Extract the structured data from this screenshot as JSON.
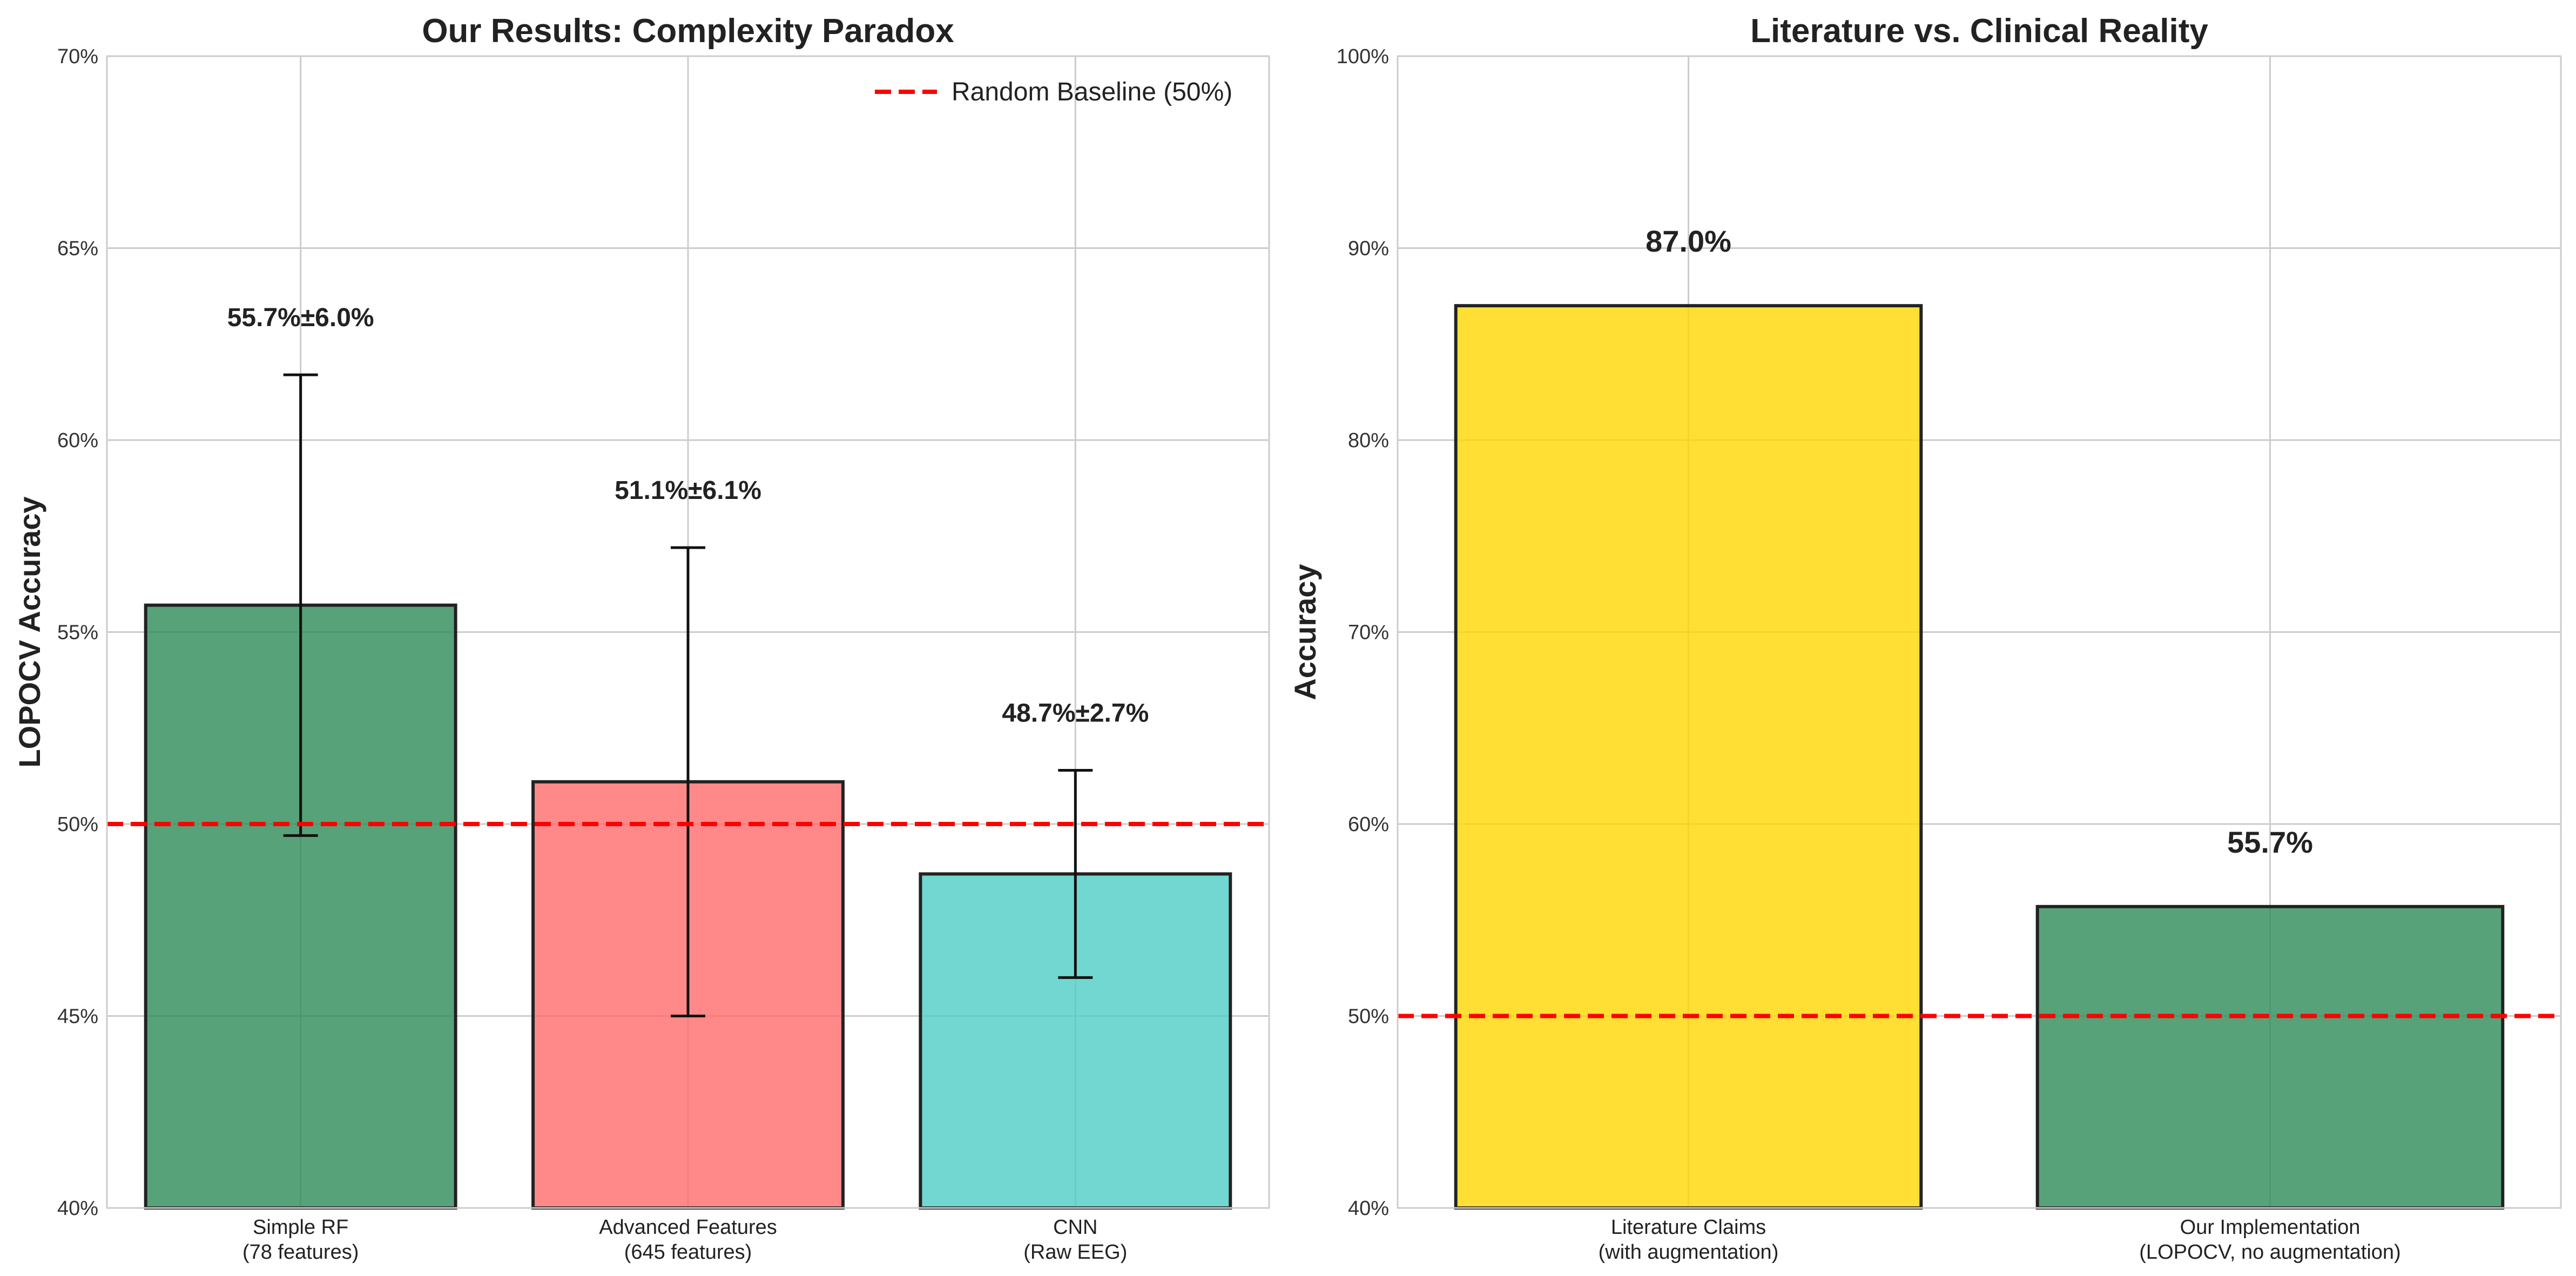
{
  "chart_data": [
    {
      "type": "bar",
      "title": "Our Results: Complexity Paradox",
      "xlabel": "",
      "ylabel": "LOPOCV Accuracy",
      "ylim": [
        0.4,
        0.7
      ],
      "yticks": [
        0.4,
        0.45,
        0.5,
        0.55,
        0.6,
        0.65,
        0.7
      ],
      "ytick_labels": [
        "40%",
        "45%",
        "50%",
        "55%",
        "60%",
        "65%",
        "70%"
      ],
      "grid": true,
      "categories": [
        [
          "Simple RF",
          "(78 features)"
        ],
        [
          "Advanced Features",
          "(645 features)"
        ],
        [
          "CNN",
          "(Raw EEG)"
        ]
      ],
      "values": [
        0.557,
        0.511,
        0.487
      ],
      "errors": [
        0.06,
        0.061,
        0.027
      ],
      "value_labels": [
        "55.7%±6.0%",
        "51.1%±6.1%",
        "48.7%±2.7%"
      ],
      "colors": [
        "#2e8b57",
        "#ff6b6b",
        "#4ecdc4"
      ],
      "baseline": {
        "value": 0.5,
        "label": "Random Baseline (50%)",
        "color": "#ff0000"
      },
      "legend": "top-right"
    },
    {
      "type": "bar",
      "title": "Literature vs. Clinical Reality",
      "xlabel": "",
      "ylabel": "Accuracy",
      "ylim": [
        0.4,
        1.0
      ],
      "yticks": [
        0.4,
        0.5,
        0.6,
        0.7,
        0.8,
        0.9,
        1.0
      ],
      "ytick_labels": [
        "40%",
        "50%",
        "60%",
        "70%",
        "80%",
        "90%",
        "100%"
      ],
      "grid": true,
      "categories": [
        [
          "Literature Claims",
          "(with augmentation)"
        ],
        [
          "Our Implementation",
          "(LOPOCV, no augmentation)"
        ]
      ],
      "values": [
        0.87,
        0.557
      ],
      "value_labels": [
        "87.0%",
        "55.7%"
      ],
      "colors": [
        "#ffd700",
        "#2e8b57"
      ],
      "baseline": {
        "value": 0.5,
        "color": "#ff0000"
      }
    }
  ]
}
